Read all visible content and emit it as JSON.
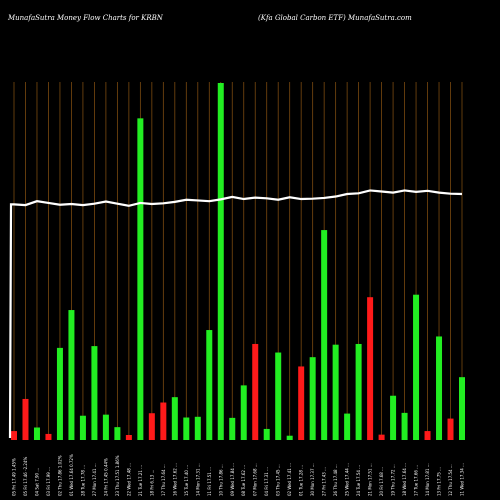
{
  "header": {
    "left": "MunafaSutra  Money Flow  Charts for KRBN",
    "right": "(Kfa  Global Carbon  ETF) MunafaSutra.com"
  },
  "chart_data": {
    "type": "bar",
    "title": "",
    "xlabel": "",
    "ylabel": "",
    "ylim": [
      0,
      100
    ],
    "grid": {
      "vertical": true,
      "horizontal": false
    },
    "colors": {
      "up": "#22ee22",
      "down": "#ff1a1a",
      "grid": "#7a4a10",
      "line": "#ffffff"
    },
    "categories": [
      "05 Fri 17.49 1.45%",
      "05 Fri 17.46 -2.24%",
      "04 Sat 7.90 ...",
      "03 Fri 17.99 ...",
      "02 Thu 17.86 1.02%",
      "01 Wed 17.64 0.72%",
      "28 Tue 17.78 ...",
      "27 Mon 17.41 ...",
      "24 Fri 17.45 0.44%",
      "23 Thu 17.51 1.86%",
      "22 Wed 17.48 ...",
      "21 Tue 17.21 ...",
      "18 Fri 6.13 ...",
      "17 Thu 17.64 ...",
      "16 Wed 17.62 ...",
      "15 Tue 17.40 ...",
      "14 Mon 17.31 ...",
      "11 Fri 17.51 ...",
      "10 Thu 17.86 ...",
      "09 Wed 17.84 ...",
      "08 Tue 17.62 ...",
      "07 Mon 17.68 ...",
      "04 Fri 17.31 ...",
      "03 Thu 17.45 ...",
      "02 Wed 17.41 ...",
      "01 Tue 17.28 ...",
      "30 Mon 17.37 ...",
      "27 Fri 17.43 ...",
      "26 Thu 17.48 ...",
      "25 Wed 17.44 ...",
      "24 Tue 17.54 ...",
      "21 Mon 17.51 ...",
      "20 Fri 17.68 ...",
      "19 Thu 17.72 ...",
      "18 Wed 17.64 ...",
      "17 Tue 17.66 ...",
      "14 Mon 17.81 ...",
      "13 Fri 17.75 ...",
      "12 Thu 17.54 ...",
      "11 Wed 17.34 ..."
    ],
    "series": [
      {
        "values": [
          2.5,
          11.5,
          3.5,
          1.7,
          25.8,
          36.4,
          6.8,
          26.3,
          7.1,
          3.6,
          1.4,
          90.1,
          7.5,
          10.5,
          12.0,
          6.3,
          6.5,
          30.8,
          100,
          6.2,
          15.3,
          26.9,
          3.1,
          24.5,
          1.2,
          20.6,
          23.2,
          58.8,
          26.7,
          7.4,
          26.9,
          40.0,
          1.5,
          12.4,
          7.6,
          40.7,
          2.5,
          29.0,
          6.0,
          17.6
        ]
      },
      {
        "values": [
          66.0,
          65.8,
          66.9,
          66.4,
          65.9,
          66.1,
          65.8,
          66.2,
          66.8,
          66.2,
          65.6,
          66.4,
          66.1,
          66.3,
          66.7,
          67.3,
          67.1,
          66.9,
          67.4,
          68.1,
          67.5,
          67.9,
          67.7,
          67.3,
          68.0,
          67.5,
          67.6,
          67.8,
          68.2,
          68.9,
          69.1,
          69.9,
          69.6,
          69.3,
          69.9,
          69.5,
          69.8,
          69.3,
          69.0,
          68.9
        ]
      }
    ],
    "direction": [
      "down",
      "down",
      "up",
      "down",
      "up",
      "up",
      "up",
      "up",
      "up",
      "up",
      "down",
      "up",
      "down",
      "down",
      "up",
      "up",
      "up",
      "up",
      "up",
      "up",
      "up",
      "down",
      "up",
      "up",
      "up",
      "down",
      "up",
      "up",
      "up",
      "up",
      "up",
      "down",
      "down",
      "up",
      "up",
      "up",
      "down",
      "up",
      "down",
      "up"
    ]
  }
}
